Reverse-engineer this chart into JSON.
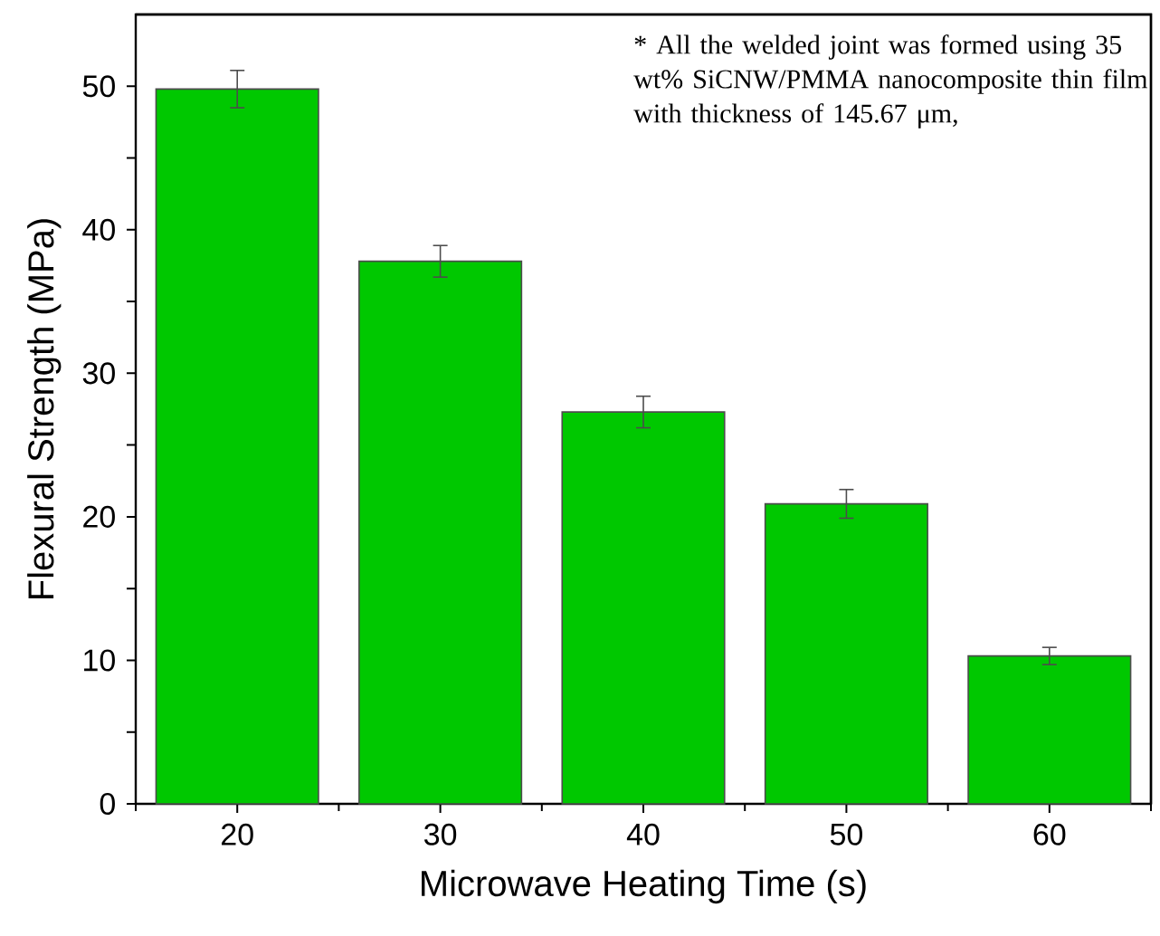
{
  "chart_data": {
    "type": "bar",
    "xlabel": "Microwave Heating Time (s)",
    "ylabel": "Flexural Strength (MPa)",
    "categories": [
      "20",
      "30",
      "40",
      "50",
      "60"
    ],
    "values": [
      49.8,
      37.8,
      27.3,
      20.9,
      10.3
    ],
    "errors": [
      1.3,
      1.1,
      1.1,
      1.0,
      0.6
    ],
    "color": "#00c800",
    "ylim": [
      0,
      55
    ],
    "yticks": [
      0,
      {
        "value": 5,
        "label": null
      },
      10,
      {
        "value": 15,
        "label": null
      },
      20,
      {
        "value": 25,
        "label": null
      },
      30,
      {
        "value": 35,
        "label": null
      },
      40,
      {
        "value": 45,
        "label": null
      },
      50
    ],
    "annotations": [
      "* All the welded joint was formed using 35 wt% SiCNW/PMMA nanocomposite thin film with thickness of 145.67 μm,"
    ]
  }
}
